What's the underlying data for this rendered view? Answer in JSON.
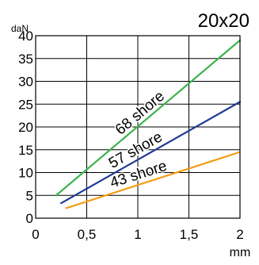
{
  "chart_data": {
    "type": "line",
    "title": "20x20",
    "xlabel": "mm",
    "ylabel": "daN",
    "xlim": [
      0,
      2
    ],
    "ylim": [
      0,
      40
    ],
    "xticks": [
      "0",
      "0,5",
      "1",
      "1,5",
      "2"
    ],
    "yticks": [
      "0",
      "5",
      "10",
      "15",
      "20",
      "25",
      "30",
      "35",
      "40"
    ],
    "grid": true,
    "series": [
      {
        "name": "68 shore",
        "color": "#3cb44b",
        "points": [
          [
            0.2,
            5
          ],
          [
            2.0,
            39
          ]
        ]
      },
      {
        "name": "57 shore",
        "color": "#1f3a93",
        "points": [
          [
            0.25,
            3.3
          ],
          [
            2.0,
            25.5
          ]
        ]
      },
      {
        "name": "43 shore",
        "color": "#f39c12",
        "points": [
          [
            0.3,
            2.2
          ],
          [
            2.0,
            14.5
          ]
        ]
      }
    ]
  }
}
